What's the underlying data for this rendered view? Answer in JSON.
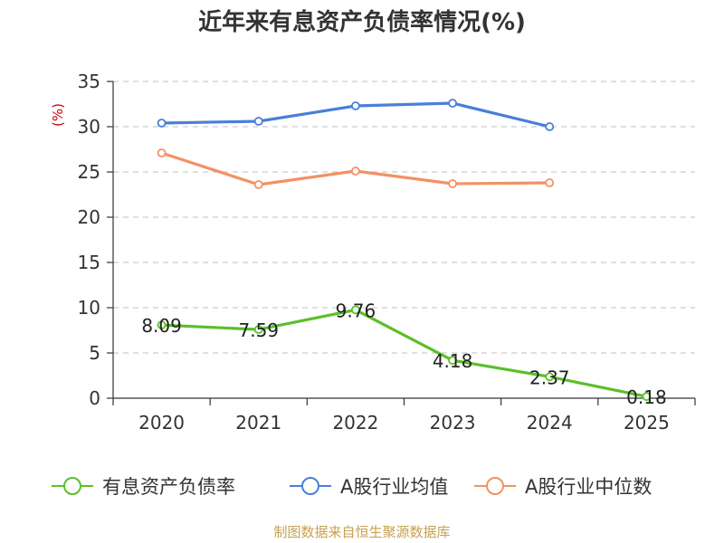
{
  "title": "近年来有息资产负债率情况(%)",
  "footer": "制图数据来自恒生聚源数据库",
  "chart_data": {
    "type": "line",
    "title": "近年来有息资产负债率情况(%)",
    "ylabel": "(%)",
    "xlabel": "",
    "categories": [
      "2020",
      "2021",
      "2022",
      "2023",
      "2024",
      "2025"
    ],
    "ylim": [
      0,
      35
    ],
    "yticks": [
      0,
      5,
      10,
      15,
      20,
      25,
      30,
      35
    ],
    "grid": true,
    "legend_position": "bottom",
    "series": [
      {
        "name": "有息资产负债率",
        "color": "#5cbf2a",
        "values": [
          8.09,
          7.59,
          9.76,
          4.18,
          2.37,
          0.18
        ],
        "labels": [
          "8.09",
          "7.59",
          "9.76",
          "4.18",
          "2.37",
          "0.18"
        ]
      },
      {
        "name": "A股行业均值",
        "color": "#4a7fd8",
        "values": [
          30.4,
          30.6,
          32.3,
          32.6,
          30.0,
          null
        ]
      },
      {
        "name": "A股行业中位数",
        "color": "#f39162",
        "values": [
          27.1,
          23.6,
          25.1,
          23.7,
          23.8,
          null
        ]
      }
    ]
  }
}
